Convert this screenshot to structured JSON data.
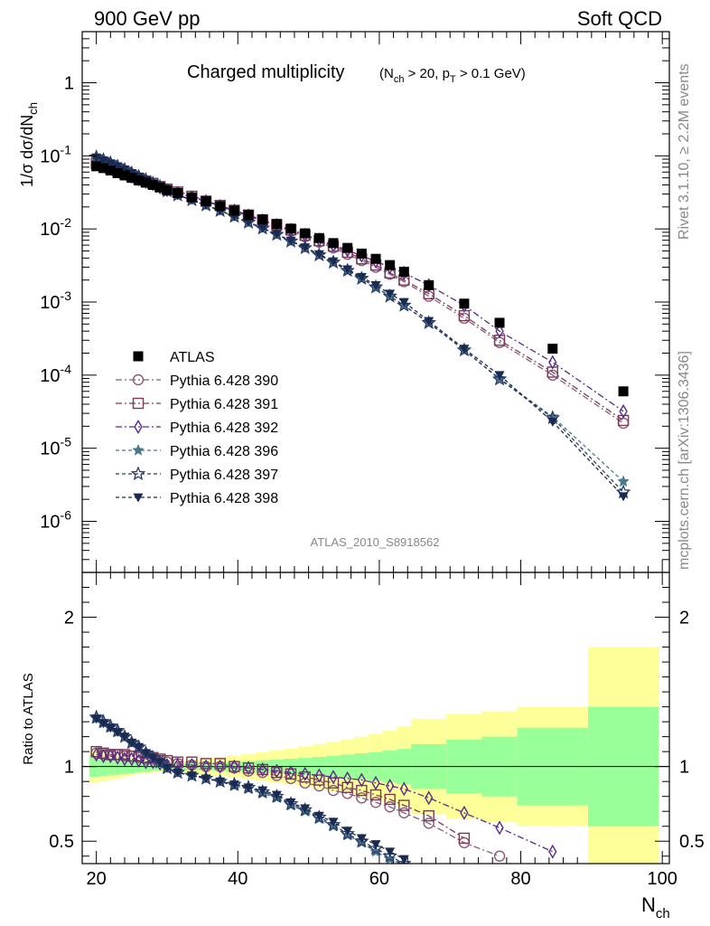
{
  "header": {
    "left": "900 GeV pp",
    "right": "Soft QCD"
  },
  "side": {
    "top": "Rivet 3.1.10, ≥ 2.2M events",
    "bottom": "mcplots.cern.ch [arXiv:1306.3436]"
  },
  "watermark": "ATLAS_2010_S8918562",
  "colors": {
    "atlas": "#000000",
    "p390": "#8a5a7c",
    "p391": "#7a3a55",
    "p392": "#5a2a8a",
    "p396": "#4a7a8a",
    "p397": "#2a3a6a",
    "p398": "#1a2a50",
    "band_inner": "#99ff99",
    "band_outer": "#ffff99"
  },
  "chart_data": [
    {
      "type": "scatter",
      "panel": "main",
      "title": "Charged multiplicity",
      "title_cut": "(N_ch > 20, p_T > 0.1 GeV)",
      "xlabel": "N_ch",
      "ylabel": "1/σ dσ/dN_ch",
      "xlim": [
        18,
        101
      ],
      "ylim": [
        2e-07,
        5
      ],
      "yscale": "log",
      "yticks": [
        "10^-6",
        "10^-5",
        "10^-4",
        "10^-3",
        "10^-2",
        "10^-1",
        "1"
      ],
      "legend_position": "left",
      "series": [
        {
          "name": "ATLAS",
          "x": [
            20,
            21,
            22,
            23,
            24,
            25,
            26,
            27,
            28,
            29,
            30,
            31.5,
            33.5,
            35.5,
            37.5,
            39.5,
            41.5,
            43.5,
            45.5,
            47.5,
            49.5,
            51.5,
            53.5,
            55.5,
            57.5,
            59.5,
            61.5,
            63.5,
            67,
            72,
            77,
            84.5,
            94.5
          ],
          "y": [
            0.072,
            0.068,
            0.063,
            0.058,
            0.054,
            0.05,
            0.046,
            0.043,
            0.04,
            0.037,
            0.034,
            0.031,
            0.027,
            0.024,
            0.0205,
            0.0178,
            0.0155,
            0.0135,
            0.0117,
            0.0101,
            0.0087,
            0.0075,
            0.0064,
            0.0055,
            0.0046,
            0.0039,
            0.0032,
            0.0026,
            0.0017,
            0.00095,
            0.00052,
            0.00023,
            6e-05
          ]
        },
        {
          "name": "Pythia 6.428 390",
          "x": [
            20,
            21,
            22,
            23,
            24,
            25,
            26,
            27,
            28,
            29,
            30,
            31.5,
            33.5,
            35.5,
            37.5,
            39.5,
            41.5,
            43.5,
            45.5,
            47.5,
            49.5,
            51.5,
            53.5,
            55.5,
            57.5,
            59.5,
            61.5,
            63.5,
            67,
            72,
            77,
            84.5,
            94.5
          ],
          "y": [
            0.078,
            0.073,
            0.068,
            0.063,
            0.058,
            0.053,
            0.049,
            0.045,
            0.041,
            0.038,
            0.034,
            0.031,
            0.027,
            0.024,
            0.0205,
            0.0175,
            0.015,
            0.0128,
            0.011,
            0.0093,
            0.0078,
            0.0066,
            0.0055,
            0.0045,
            0.0037,
            0.003,
            0.0024,
            0.0019,
            0.0012,
            0.0006,
            0.00028,
            0.0001,
            2.2e-05
          ]
        },
        {
          "name": "Pythia 6.428 391",
          "x": [
            20,
            21,
            22,
            23,
            24,
            25,
            26,
            27,
            28,
            29,
            30,
            31.5,
            33.5,
            35.5,
            37.5,
            39.5,
            41.5,
            43.5,
            45.5,
            47.5,
            49.5,
            51.5,
            53.5,
            55.5,
            57.5,
            59.5,
            61.5,
            63.5,
            67,
            72,
            77,
            84.5,
            94.5
          ],
          "y": [
            0.079,
            0.074,
            0.068,
            0.063,
            0.058,
            0.053,
            0.049,
            0.045,
            0.042,
            0.038,
            0.035,
            0.032,
            0.028,
            0.024,
            0.021,
            0.018,
            0.0155,
            0.0133,
            0.0114,
            0.0097,
            0.0082,
            0.0069,
            0.0058,
            0.0048,
            0.0039,
            0.0032,
            0.0025,
            0.002,
            0.0013,
            0.00065,
            0.0003,
            0.00011,
            2.4e-05
          ]
        },
        {
          "name": "Pythia 6.428 392",
          "x": [
            20,
            21,
            22,
            23,
            24,
            25,
            26,
            27,
            28,
            29,
            30,
            31.5,
            33.5,
            35.5,
            37.5,
            39.5,
            41.5,
            43.5,
            45.5,
            47.5,
            49.5,
            51.5,
            53.5,
            55.5,
            57.5,
            59.5,
            61.5,
            63.5,
            67,
            72,
            77,
            84.5,
            94.5
          ],
          "y": [
            0.078,
            0.073,
            0.068,
            0.062,
            0.057,
            0.052,
            0.048,
            0.044,
            0.041,
            0.037,
            0.034,
            0.031,
            0.027,
            0.024,
            0.0205,
            0.0178,
            0.0153,
            0.0131,
            0.0113,
            0.0097,
            0.0083,
            0.0071,
            0.006,
            0.0051,
            0.0043,
            0.0036,
            0.003,
            0.0025,
            0.0017,
            0.0009,
            0.0004,
            0.00015,
            3.2e-05
          ]
        },
        {
          "name": "Pythia 6.428 396",
          "x": [
            20,
            21,
            22,
            23,
            24,
            25,
            26,
            27,
            28,
            29,
            30,
            31.5,
            33.5,
            35.5,
            37.5,
            39.5,
            41.5,
            43.5,
            45.5,
            47.5,
            49.5,
            51.5,
            53.5,
            55.5,
            57.5,
            59.5,
            61.5,
            63.5,
            67,
            72,
            77,
            84.5,
            94.5
          ],
          "y": [
            0.095,
            0.087,
            0.079,
            0.072,
            0.065,
            0.058,
            0.052,
            0.047,
            0.042,
            0.038,
            0.033,
            0.029,
            0.025,
            0.021,
            0.0178,
            0.0148,
            0.0123,
            0.0101,
            0.0084,
            0.0068,
            0.0055,
            0.0044,
            0.0035,
            0.0027,
            0.0021,
            0.0016,
            0.0012,
            0.0009,
            0.00052,
            0.00022,
            9e-05,
            2.7e-05,
            3.5e-06
          ]
        },
        {
          "name": "Pythia 6.428 397",
          "x": [
            20,
            21,
            22,
            23,
            24,
            25,
            26,
            27,
            28,
            29,
            30,
            31.5,
            33.5,
            35.5,
            37.5,
            39.5,
            41.5,
            43.5,
            45.5,
            47.5,
            49.5,
            51.5,
            53.5,
            55.5,
            57.5,
            59.5,
            61.5,
            63.5,
            67,
            72,
            77,
            84.5,
            94.5
          ],
          "y": [
            0.096,
            0.088,
            0.08,
            0.072,
            0.065,
            0.058,
            0.052,
            0.047,
            0.042,
            0.038,
            0.033,
            0.029,
            0.025,
            0.0212,
            0.0178,
            0.0148,
            0.0123,
            0.0102,
            0.0084,
            0.0068,
            0.0055,
            0.0044,
            0.0035,
            0.0027,
            0.0021,
            0.0016,
            0.0012,
            0.0009,
            0.00052,
            0.00022,
            8.8e-05,
            2.6e-05,
            2.5e-06
          ]
        },
        {
          "name": "Pythia 6.428 398",
          "x": [
            20,
            21,
            22,
            23,
            24,
            25,
            26,
            27,
            28,
            29,
            30,
            31.5,
            33.5,
            35.5,
            37.5,
            39.5,
            41.5,
            43.5,
            45.5,
            47.5,
            49.5,
            51.5,
            53.5,
            55.5,
            57.5,
            59.5,
            61.5,
            63.5,
            67,
            72,
            77,
            84.5,
            94.5
          ],
          "y": [
            0.095,
            0.087,
            0.079,
            0.072,
            0.065,
            0.058,
            0.052,
            0.047,
            0.042,
            0.038,
            0.033,
            0.029,
            0.025,
            0.0212,
            0.0178,
            0.0148,
            0.0124,
            0.0103,
            0.0085,
            0.0069,
            0.0056,
            0.0045,
            0.0036,
            0.0028,
            0.0022,
            0.0017,
            0.0013,
            0.001,
            0.00055,
            0.00023,
            0.0001,
            2.3e-05,
            2.2e-06
          ]
        }
      ]
    },
    {
      "type": "scatter",
      "panel": "ratio",
      "ylabel": "Ratio to ATLAS",
      "xlabel": "N_ch",
      "xlim": [
        18,
        101
      ],
      "ylim": [
        0.35,
        2.3
      ],
      "xticks": [
        "20",
        "40",
        "60",
        "80",
        "100"
      ],
      "yticks": [
        "0.5",
        "1",
        "2"
      ],
      "band_edges": [
        19,
        20.5,
        21.5,
        22.5,
        23.5,
        24.5,
        25.5,
        26.5,
        27.5,
        28.5,
        29.5,
        30.5,
        32.5,
        34.5,
        36.5,
        38.5,
        40.5,
        42.5,
        44.5,
        46.5,
        48.5,
        50.5,
        52.5,
        54.5,
        56.5,
        58.5,
        60.5,
        62.5,
        64.5,
        69.5,
        74.5,
        79.5,
        89.5,
        99.5
      ],
      "band_inner": [
        0.07,
        0.065,
        0.06,
        0.055,
        0.05,
        0.045,
        0.04,
        0.035,
        0.03,
        0.027,
        0.025,
        0.025,
        0.025,
        0.027,
        0.03,
        0.033,
        0.037,
        0.042,
        0.047,
        0.052,
        0.058,
        0.065,
        0.072,
        0.08,
        0.088,
        0.097,
        0.107,
        0.118,
        0.15,
        0.18,
        0.2,
        0.26,
        0.4
      ],
      "band_outer": [
        0.11,
        0.1,
        0.09,
        0.08,
        0.07,
        0.06,
        0.05,
        0.045,
        0.04,
        0.035,
        0.032,
        0.035,
        0.045,
        0.055,
        0.065,
        0.075,
        0.085,
        0.095,
        0.11,
        0.12,
        0.135,
        0.15,
        0.165,
        0.18,
        0.2,
        0.22,
        0.24,
        0.27,
        0.32,
        0.35,
        0.37,
        0.4,
        0.8
      ],
      "series": [
        {
          "name": "Pythia 6.428 390",
          "x": [
            20,
            21,
            22,
            23,
            24,
            25,
            26,
            27,
            28,
            29,
            30,
            31.5,
            33.5,
            35.5,
            37.5,
            39.5,
            41.5,
            43.5,
            45.5,
            47.5,
            49.5,
            51.5,
            53.5,
            55.5,
            57.5,
            59.5,
            61.5,
            63.5,
            67,
            72,
            77
          ],
          "y": [
            1.09,
            1.08,
            1.08,
            1.08,
            1.07,
            1.07,
            1.06,
            1.05,
            1.05,
            1.04,
            1.03,
            1.02,
            1.01,
            1.0,
            1.0,
            0.99,
            0.97,
            0.96,
            0.94,
            0.92,
            0.89,
            0.87,
            0.84,
            0.82,
            0.79,
            0.76,
            0.73,
            0.69,
            0.62,
            0.49,
            0.4
          ]
        },
        {
          "name": "Pythia 6.428 391",
          "x": [
            20,
            21,
            22,
            23,
            24,
            25,
            26,
            27,
            28,
            29,
            30,
            31.5,
            33.5,
            35.5,
            37.5,
            39.5,
            41.5,
            43.5,
            45.5,
            47.5,
            49.5,
            51.5,
            53.5,
            55.5,
            57.5,
            59.5,
            61.5,
            63.5,
            67,
            72
          ],
          "y": [
            1.1,
            1.09,
            1.08,
            1.08,
            1.08,
            1.07,
            1.07,
            1.06,
            1.06,
            1.05,
            1.04,
            1.03,
            1.03,
            1.02,
            1.02,
            1.0,
            0.99,
            0.98,
            0.96,
            0.95,
            0.93,
            0.91,
            0.89,
            0.86,
            0.84,
            0.81,
            0.78,
            0.74,
            0.67,
            0.52
          ]
        },
        {
          "name": "Pythia 6.428 392",
          "x": [
            20,
            21,
            22,
            23,
            24,
            25,
            26,
            27,
            28,
            29,
            30,
            31.5,
            33.5,
            35.5,
            37.5,
            39.5,
            41.5,
            43.5,
            45.5,
            47.5,
            49.5,
            51.5,
            53.5,
            55.5,
            57.5,
            59.5,
            61.5,
            63.5,
            67,
            72,
            77,
            84.5
          ],
          "y": [
            1.08,
            1.07,
            1.07,
            1.06,
            1.05,
            1.05,
            1.04,
            1.03,
            1.03,
            1.02,
            1.01,
            1.01,
            1.01,
            1.0,
            1.0,
            1.0,
            0.99,
            0.98,
            0.97,
            0.96,
            0.95,
            0.94,
            0.93,
            0.92,
            0.91,
            0.89,
            0.87,
            0.85,
            0.79,
            0.69,
            0.59,
            0.43
          ]
        },
        {
          "name": "Pythia 6.428 396",
          "x": [
            20,
            21,
            22,
            23,
            24,
            25,
            26,
            27,
            28,
            29,
            30,
            31.5,
            33.5,
            35.5,
            37.5,
            39.5,
            41.5,
            43.5,
            45.5,
            47.5,
            49.5,
            51.5,
            53.5,
            55.5,
            57.5,
            59.5,
            61.5,
            63.5
          ],
          "y": [
            1.32,
            1.29,
            1.26,
            1.23,
            1.2,
            1.16,
            1.13,
            1.09,
            1.06,
            1.03,
            0.99,
            0.96,
            0.94,
            0.92,
            0.9,
            0.87,
            0.85,
            0.82,
            0.79,
            0.74,
            0.7,
            0.65,
            0.6,
            0.54,
            0.49,
            0.43,
            0.38,
            0.34
          ]
        },
        {
          "name": "Pythia 6.428 397",
          "x": [
            20,
            21,
            22,
            23,
            24,
            25,
            26,
            27,
            28,
            29,
            30,
            31.5,
            33.5,
            35.5,
            37.5,
            39.5,
            41.5,
            43.5,
            45.5,
            47.5,
            49.5,
            51.5,
            53.5,
            55.5,
            57.5,
            59.5,
            61.5,
            63.5
          ],
          "y": [
            1.33,
            1.3,
            1.27,
            1.24,
            1.2,
            1.16,
            1.13,
            1.09,
            1.06,
            1.03,
            0.99,
            0.96,
            0.94,
            0.92,
            0.9,
            0.88,
            0.86,
            0.83,
            0.8,
            0.75,
            0.71,
            0.66,
            0.61,
            0.55,
            0.5,
            0.45,
            0.4,
            0.35
          ]
        },
        {
          "name": "Pythia 6.428 398",
          "x": [
            20,
            21,
            22,
            23,
            24,
            25,
            26,
            27,
            28,
            29,
            30,
            31.5,
            33.5,
            35.5,
            37.5,
            39.5,
            41.5,
            43.5,
            45.5,
            47.5,
            49.5,
            51.5,
            53.5,
            55.5,
            57.5,
            59.5,
            61.5,
            63.5
          ],
          "y": [
            1.32,
            1.29,
            1.26,
            1.23,
            1.2,
            1.16,
            1.13,
            1.09,
            1.06,
            1.03,
            0.99,
            0.96,
            0.94,
            0.92,
            0.9,
            0.88,
            0.86,
            0.84,
            0.81,
            0.76,
            0.72,
            0.67,
            0.63,
            0.57,
            0.52,
            0.48,
            0.43,
            0.38
          ]
        }
      ]
    }
  ]
}
